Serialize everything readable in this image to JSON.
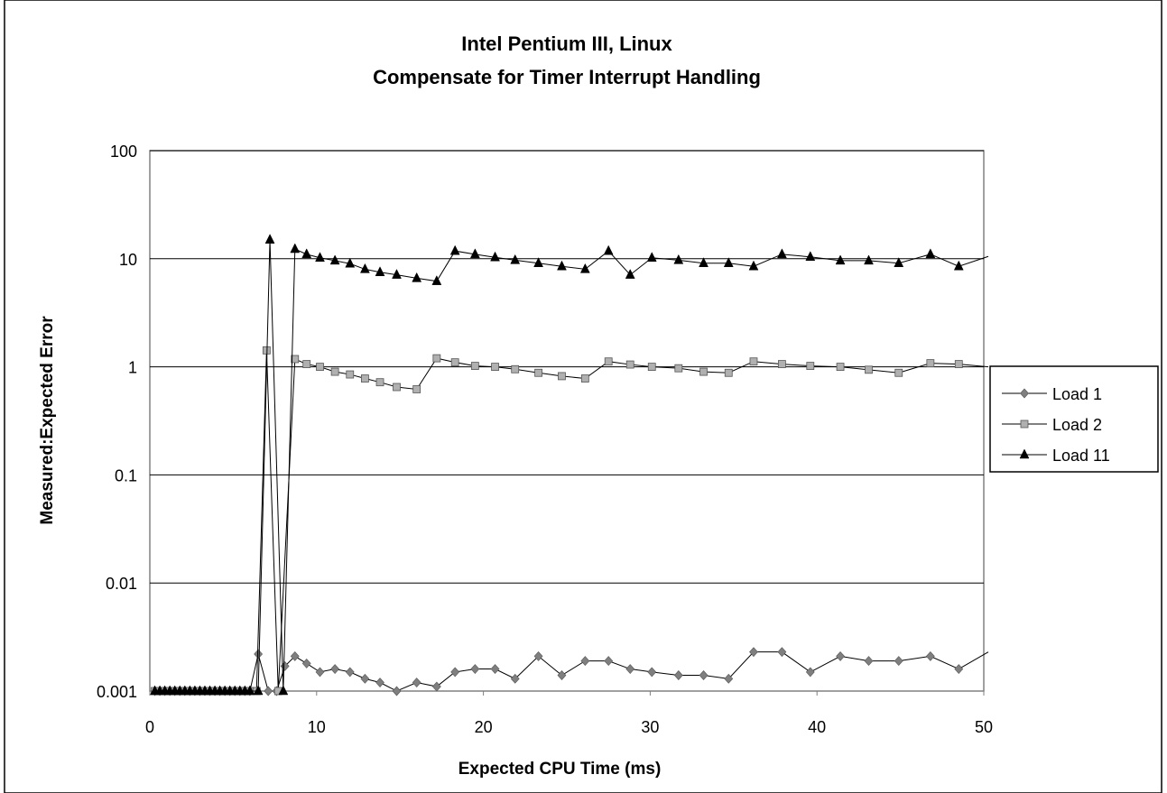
{
  "chart_data": {
    "type": "line",
    "title": "Intel Pentium III, Linux",
    "subtitle": "Compensate for Timer Interrupt Handling",
    "xlabel": "Expected CPU Time (ms)",
    "ylabel": "Measured:Expected Error",
    "xlim": [
      0,
      50
    ],
    "ylim": [
      0.001,
      100
    ],
    "yscale": "log",
    "grid": "horizontal major",
    "legend_position": "right",
    "x_ticks": [
      "0",
      "10",
      "20",
      "30",
      "40",
      "50"
    ],
    "y_ticks": [
      "0.001",
      "0.01",
      "0.1",
      "1",
      "10",
      "100"
    ],
    "series": [
      {
        "name": "Load 1",
        "marker": "diamond",
        "color": "#7f7f7f",
        "points": [
          [
            0.3,
            0.001
          ],
          [
            0.6,
            0.001
          ],
          [
            0.9,
            0.001
          ],
          [
            1.2,
            0.001
          ],
          [
            1.5,
            0.001
          ],
          [
            1.8,
            0.001
          ],
          [
            2.1,
            0.001
          ],
          [
            2.4,
            0.001
          ],
          [
            2.7,
            0.001
          ],
          [
            3.0,
            0.001
          ],
          [
            3.3,
            0.001
          ],
          [
            3.6,
            0.001
          ],
          [
            3.9,
            0.001
          ],
          [
            4.2,
            0.001
          ],
          [
            4.5,
            0.001
          ],
          [
            4.8,
            0.001
          ],
          [
            5.1,
            0.001
          ],
          [
            5.4,
            0.001
          ],
          [
            5.7,
            0.001
          ],
          [
            6.0,
            0.001
          ],
          [
            6.5,
            0.0022
          ],
          [
            7.1,
            0.001
          ],
          [
            7.6,
            0.001
          ],
          [
            8.1,
            0.0017
          ],
          [
            8.7,
            0.0021
          ],
          [
            9.4,
            0.0018
          ],
          [
            10.2,
            0.0015
          ],
          [
            11.1,
            0.0016
          ],
          [
            12.0,
            0.0015
          ],
          [
            12.9,
            0.0013
          ],
          [
            13.8,
            0.0012
          ],
          [
            14.8,
            0.001
          ],
          [
            16.0,
            0.0012
          ],
          [
            17.2,
            0.0011
          ],
          [
            18.3,
            0.0015
          ],
          [
            19.5,
            0.0016
          ],
          [
            20.7,
            0.0016
          ],
          [
            21.9,
            0.0013
          ],
          [
            23.3,
            0.0021
          ],
          [
            24.7,
            0.0014
          ],
          [
            26.1,
            0.0019
          ],
          [
            27.5,
            0.0019
          ],
          [
            28.8,
            0.0016
          ],
          [
            30.1,
            0.0015
          ],
          [
            31.7,
            0.0014
          ],
          [
            33.2,
            0.0014
          ],
          [
            34.7,
            0.0013
          ],
          [
            36.2,
            0.0023
          ],
          [
            37.9,
            0.0023
          ],
          [
            39.6,
            0.0015
          ],
          [
            41.4,
            0.0021
          ],
          [
            43.1,
            0.0019
          ],
          [
            44.9,
            0.0019
          ],
          [
            46.8,
            0.0021
          ],
          [
            48.5,
            0.0016
          ],
          [
            50.5,
            0.0023
          ]
        ]
      },
      {
        "name": "Load 2",
        "marker": "square",
        "color": "#7f7f7f",
        "points": [
          [
            0.3,
            0.001
          ],
          [
            0.6,
            0.001
          ],
          [
            0.9,
            0.001
          ],
          [
            1.2,
            0.001
          ],
          [
            1.5,
            0.001
          ],
          [
            1.8,
            0.001
          ],
          [
            2.1,
            0.001
          ],
          [
            2.4,
            0.001
          ],
          [
            2.7,
            0.001
          ],
          [
            3.0,
            0.001
          ],
          [
            3.3,
            0.001
          ],
          [
            3.6,
            0.001
          ],
          [
            3.9,
            0.001
          ],
          [
            4.2,
            0.001
          ],
          [
            4.5,
            0.001
          ],
          [
            4.8,
            0.001
          ],
          [
            5.1,
            0.001
          ],
          [
            5.4,
            0.001
          ],
          [
            5.7,
            0.001
          ],
          [
            6.0,
            0.001
          ],
          [
            6.4,
            0.001
          ],
          [
            7.0,
            1.42
          ],
          [
            7.7,
            0.001
          ],
          [
            8.7,
            1.18
          ],
          [
            9.4,
            1.06
          ],
          [
            10.2,
            1.0
          ],
          [
            11.1,
            0.9
          ],
          [
            12.0,
            0.85
          ],
          [
            12.9,
            0.78
          ],
          [
            13.8,
            0.72
          ],
          [
            14.8,
            0.65
          ],
          [
            16.0,
            0.62
          ],
          [
            17.2,
            1.2
          ],
          [
            18.3,
            1.1
          ],
          [
            19.5,
            1.02
          ],
          [
            20.7,
            1.0
          ],
          [
            21.9,
            0.95
          ],
          [
            23.3,
            0.88
          ],
          [
            24.7,
            0.82
          ],
          [
            26.1,
            0.78
          ],
          [
            27.5,
            1.12
          ],
          [
            28.8,
            1.05
          ],
          [
            30.1,
            1.0
          ],
          [
            31.7,
            0.97
          ],
          [
            33.2,
            0.9
          ],
          [
            34.7,
            0.88
          ],
          [
            36.2,
            1.12
          ],
          [
            37.9,
            1.06
          ],
          [
            39.6,
            1.02
          ],
          [
            41.4,
            1.0
          ],
          [
            43.1,
            0.94
          ],
          [
            44.9,
            0.88
          ],
          [
            46.8,
            1.08
          ],
          [
            48.5,
            1.06
          ],
          [
            50.5,
            1.0
          ]
        ]
      },
      {
        "name": "Load 11",
        "marker": "triangle",
        "color": "#000000",
        "points": [
          [
            0.3,
            0.001
          ],
          [
            0.6,
            0.001
          ],
          [
            0.9,
            0.001
          ],
          [
            1.2,
            0.001
          ],
          [
            1.5,
            0.001
          ],
          [
            1.8,
            0.001
          ],
          [
            2.1,
            0.001
          ],
          [
            2.4,
            0.001
          ],
          [
            2.7,
            0.001
          ],
          [
            3.0,
            0.001
          ],
          [
            3.3,
            0.001
          ],
          [
            3.6,
            0.001
          ],
          [
            3.9,
            0.001
          ],
          [
            4.2,
            0.001
          ],
          [
            4.5,
            0.001
          ],
          [
            4.8,
            0.001
          ],
          [
            5.1,
            0.001
          ],
          [
            5.4,
            0.001
          ],
          [
            5.7,
            0.001
          ],
          [
            6.0,
            0.001
          ],
          [
            6.5,
            0.001
          ],
          [
            7.2,
            15.0
          ],
          [
            8.0,
            0.001
          ],
          [
            8.7,
            12.3
          ],
          [
            9.4,
            11.0
          ],
          [
            10.2,
            10.2
          ],
          [
            11.1,
            9.6
          ],
          [
            12.0,
            9.0
          ],
          [
            12.9,
            8.0
          ],
          [
            13.8,
            7.5
          ],
          [
            14.8,
            7.1
          ],
          [
            16.0,
            6.6
          ],
          [
            17.2,
            6.2
          ],
          [
            18.3,
            11.8
          ],
          [
            19.5,
            11.0
          ],
          [
            20.7,
            10.3
          ],
          [
            21.9,
            9.7
          ],
          [
            23.3,
            9.1
          ],
          [
            24.7,
            8.5
          ],
          [
            26.1,
            8.0
          ],
          [
            27.5,
            11.8
          ],
          [
            28.8,
            7.1
          ],
          [
            30.1,
            10.2
          ],
          [
            31.7,
            9.7
          ],
          [
            33.2,
            9.1
          ],
          [
            34.7,
            9.1
          ],
          [
            36.2,
            8.5
          ],
          [
            37.9,
            11.0
          ],
          [
            39.6,
            10.4
          ],
          [
            41.4,
            9.6
          ],
          [
            43.1,
            9.6
          ],
          [
            44.9,
            9.1
          ],
          [
            46.8,
            11.0
          ],
          [
            48.5,
            8.5
          ],
          [
            50.5,
            10.5
          ]
        ]
      }
    ]
  }
}
